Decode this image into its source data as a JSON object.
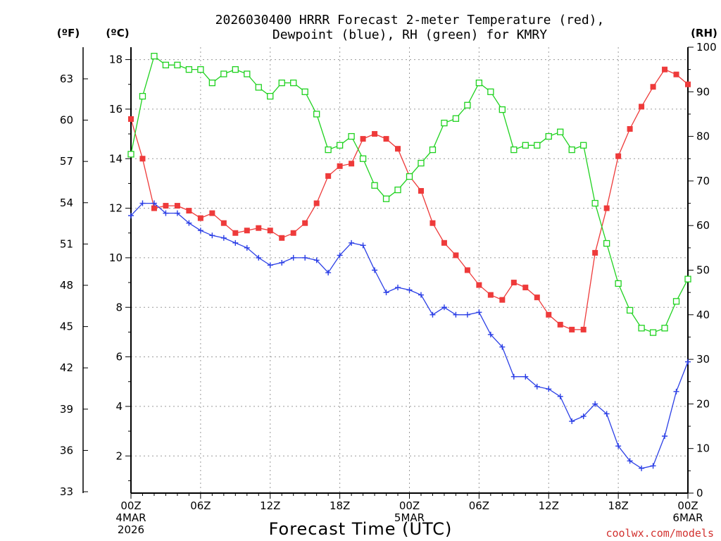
{
  "chart_data": {
    "type": "line",
    "title_lines": [
      "2026030400 HRRR Forecast 2-meter Temperature (red),",
      "Dewpoint (blue), RH (green) for KMRY"
    ],
    "unit_labels": {
      "fahrenheit": "(ºF)",
      "celsius": "(ºC)",
      "rh": "(RH)"
    },
    "xlabel": "Forecast Time (UTC)",
    "credit": "coolwx.com/models",
    "x_ticks": [
      {
        "h": 0,
        "lines": [
          "00Z",
          "4MAR",
          "2026"
        ]
      },
      {
        "h": 6,
        "lines": [
          "06Z"
        ]
      },
      {
        "h": 12,
        "lines": [
          "12Z"
        ]
      },
      {
        "h": 18,
        "lines": [
          "18Z"
        ]
      },
      {
        "h": 24,
        "lines": [
          "00Z",
          "5MAR"
        ]
      },
      {
        "h": 30,
        "lines": [
          "06Z"
        ]
      },
      {
        "h": 36,
        "lines": [
          "12Z"
        ]
      },
      {
        "h": 42,
        "lines": [
          "18Z"
        ]
      },
      {
        "h": 48,
        "lines": [
          "00Z",
          "6MAR"
        ]
      }
    ],
    "x_range": [
      0,
      48
    ],
    "celsius_axis": {
      "range": [
        0.5,
        18.5
      ],
      "ticks": [
        2,
        4,
        6,
        8,
        10,
        12,
        14,
        16,
        18
      ]
    },
    "fahrenheit_axis": {
      "ticks": [
        33,
        36,
        39,
        42,
        45,
        48,
        51,
        54,
        57,
        60,
        63
      ]
    },
    "rh_axis": {
      "range": [
        0,
        100
      ],
      "ticks": [
        0,
        10,
        20,
        30,
        40,
        50,
        60,
        70,
        80,
        90,
        100
      ]
    },
    "grid": true,
    "series": [
      {
        "name": "Temperature",
        "axis": "celsius",
        "color": "#ee3a3a",
        "marker": "filled-square",
        "values": [
          15.6,
          14.0,
          12.0,
          12.1,
          12.1,
          11.9,
          11.6,
          11.8,
          11.4,
          11.0,
          11.1,
          11.2,
          11.1,
          10.8,
          11.0,
          11.4,
          12.2,
          13.3,
          13.7,
          13.8,
          14.8,
          15.0,
          14.8,
          14.4,
          13.3,
          12.7,
          11.4,
          10.6,
          10.1,
          9.5,
          8.9,
          8.5,
          8.3,
          9.0,
          8.8,
          8.4,
          7.7,
          7.3,
          7.1,
          7.1,
          10.2,
          12.0,
          14.1,
          15.2,
          16.1,
          16.9,
          17.6,
          17.4,
          17.0
        ]
      },
      {
        "name": "Dewpoint",
        "axis": "celsius",
        "color": "#2b3fe6",
        "marker": "plus",
        "values": [
          11.7,
          12.2,
          12.2,
          11.8,
          11.8,
          11.4,
          11.1,
          10.9,
          10.8,
          10.6,
          10.4,
          10.0,
          9.7,
          9.8,
          10.0,
          10.0,
          9.9,
          9.4,
          10.1,
          10.6,
          10.5,
          9.5,
          8.6,
          8.8,
          8.7,
          8.5,
          7.7,
          8.0,
          7.7,
          7.7,
          7.8,
          6.9,
          6.4,
          5.2,
          5.2,
          4.8,
          4.7,
          4.4,
          3.4,
          3.6,
          4.1,
          3.7,
          2.4,
          1.8,
          1.5,
          1.6,
          2.8,
          4.6,
          5.8
        ]
      },
      {
        "name": "RH",
        "axis": "rh",
        "color": "#1fd21f",
        "marker": "open-square",
        "values": [
          76,
          89,
          98,
          96,
          96,
          95,
          95,
          92,
          94,
          95,
          94,
          91,
          89,
          92,
          92,
          90,
          85,
          77,
          78,
          80,
          75,
          69,
          66,
          68,
          71,
          74,
          77,
          83,
          84,
          87,
          92,
          90,
          86,
          77,
          78,
          78,
          80,
          81,
          77,
          78,
          65,
          56,
          47,
          41,
          37,
          36,
          37,
          43,
          48
        ]
      }
    ]
  }
}
